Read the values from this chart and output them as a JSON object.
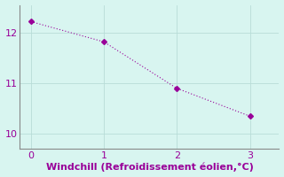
{
  "x": [
    0,
    1,
    2,
    3
  ],
  "y": [
    12.22,
    11.82,
    10.9,
    10.35
  ],
  "line_color": "#990099",
  "marker": "D",
  "marker_size": 3,
  "background_color": "#d8f5f0",
  "grid_color": "#b8ddd8",
  "xlabel": "Windchill (Refroidissement éolien,°C)",
  "xlabel_color": "#990099",
  "xlabel_fontsize": 8,
  "tick_color": "#990099",
  "tick_fontsize": 8,
  "xlim": [
    -0.15,
    3.4
  ],
  "ylim": [
    9.7,
    12.55
  ],
  "yticks": [
    10,
    11,
    12
  ],
  "xticks": [
    0,
    1,
    2,
    3
  ],
  "spine_color": "#888888",
  "line_width": 0.8
}
